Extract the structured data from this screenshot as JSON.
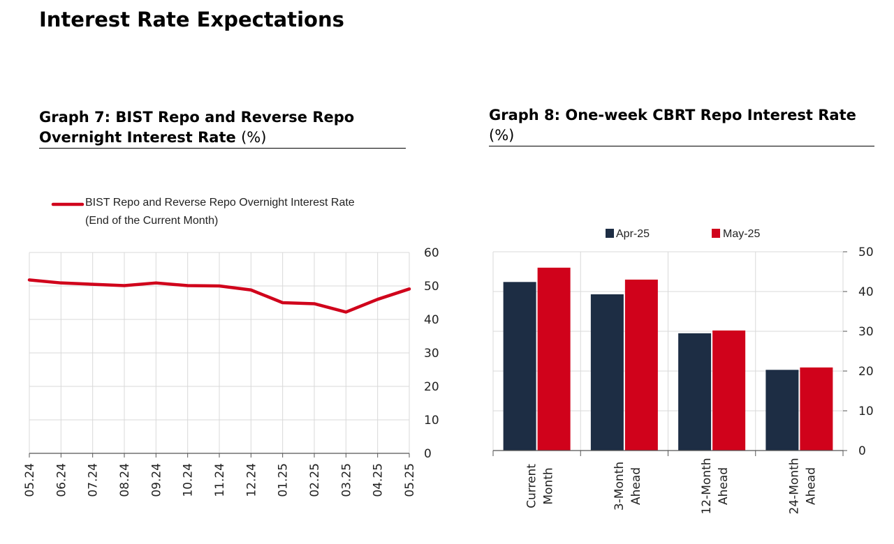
{
  "page": {
    "title": "Interest Rate Expectations"
  },
  "graph7": {
    "title_bold": "Graph 7: BIST Repo and Reverse Repo Overnight Interest Rate",
    "title_unit": "(%)"
  },
  "graph8": {
    "title_bold": "Graph 8: One-week CBRT Repo Interest Rate",
    "title_unit": "(%)"
  },
  "colors": {
    "red": "#D0021B",
    "navy": "#1D2D44",
    "grid": "#D9D9D9",
    "axis": "#555555"
  },
  "chart_data": [
    {
      "type": "line",
      "title": "Graph 7: BIST Repo and Reverse Repo Overnight Interest Rate (%)",
      "x": [
        "05.24",
        "06.24",
        "07.24",
        "08.24",
        "09.24",
        "10.24",
        "11.24",
        "12.24",
        "01.25",
        "02.25",
        "03.25",
        "04.25",
        "05.25"
      ],
      "series": [
        {
          "name": "BIST Repo and Reverse Repo Overnight Interest Rate",
          "name_line2": "(End of the Current Month)",
          "values": [
            51.8,
            50.9,
            50.5,
            50.1,
            50.9,
            50.1,
            50.0,
            48.8,
            45.0,
            44.7,
            42.2,
            46.0,
            49.1
          ]
        }
      ],
      "ylim": [
        0,
        60
      ],
      "yticks": [
        0,
        10,
        20,
        30,
        40,
        50,
        60
      ],
      "legend": "top-left",
      "grid": true
    },
    {
      "type": "bar",
      "title": "Graph 8: One-week CBRT Repo Interest Rate (%)",
      "categories": [
        [
          "Current",
          "Month"
        ],
        [
          "3-Month",
          "Ahead"
        ],
        [
          "12-Month",
          "Ahead"
        ],
        [
          "24-Month",
          "Ahead"
        ]
      ],
      "series": [
        {
          "name": "Apr-25",
          "values": [
            42.4,
            39.3,
            29.5,
            20.3
          ]
        },
        {
          "name": "May-25",
          "values": [
            46.0,
            43.0,
            30.2,
            20.9
          ]
        }
      ],
      "ylim": [
        0,
        50
      ],
      "yticks": [
        0,
        10,
        20,
        30,
        40,
        50
      ],
      "legend": "top",
      "grid": true
    }
  ]
}
